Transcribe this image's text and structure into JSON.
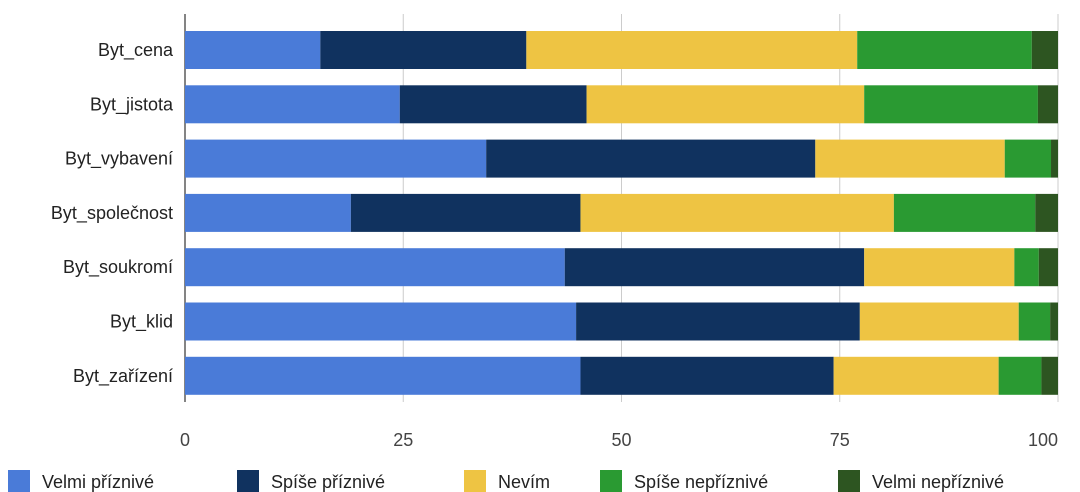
{
  "chart_data": {
    "type": "bar",
    "orientation": "horizontal",
    "stacked": true,
    "categories": [
      "Byt_cena",
      "Byt_jistota",
      "Byt_vybavení",
      "Byt_společnost",
      "Byt_soukromí",
      "Byt_klid",
      "Byt_zařízení"
    ],
    "series": [
      {
        "name": "Velmi příznivé",
        "color": "#4a7bd8",
        "values": [
          15.5,
          24.6,
          34.5,
          19.0,
          43.5,
          44.8,
          45.3
        ]
      },
      {
        "name": "Spíše příznivé",
        "color": "#10325f",
        "values": [
          23.6,
          21.4,
          37.7,
          26.3,
          34.3,
          32.5,
          29.0
        ]
      },
      {
        "name": "Nevím",
        "color": "#eec443",
        "values": [
          37.9,
          31.8,
          21.7,
          35.9,
          17.2,
          18.2,
          18.9
        ]
      },
      {
        "name": "Spíše nepříznivé",
        "color": "#2a9a32",
        "values": [
          20.0,
          19.9,
          5.3,
          16.2,
          2.8,
          3.6,
          4.9
        ]
      },
      {
        "name": "Velmi nepříznivé",
        "color": "#2d5521",
        "values": [
          3.0,
          2.3,
          0.8,
          2.6,
          2.2,
          0.9,
          1.9
        ]
      }
    ],
    "x_ticks": [
      "0",
      "25",
      "50",
      "75",
      "100"
    ],
    "xlim": [
      0,
      100
    ],
    "grid": true,
    "legend_position": "bottom"
  }
}
